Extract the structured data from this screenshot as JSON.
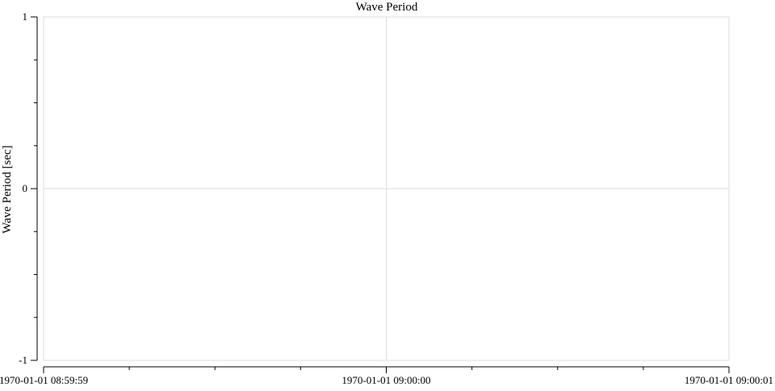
{
  "chart_data": {
    "type": "line",
    "title": "Wave Period",
    "xlabel": "",
    "ylabel": "Wave Period [sec]",
    "x_range": [
      "1970-01-01 08:59:59",
      "1970-01-01 09:00:01"
    ],
    "x_major_ticks": [
      "1970-01-01 08:59:59",
      "1970-01-01 09:00:00",
      "1970-01-01 09:00:01"
    ],
    "x_minor_ticks_per_interval": 4,
    "ylim": [
      -1,
      1
    ],
    "y_major_ticks": [
      {
        "value": 1,
        "label": "1"
      },
      {
        "value": 0,
        "label": "0"
      },
      {
        "value": -1,
        "label": "-1"
      }
    ],
    "y_minor_ticks_per_interval": 4,
    "grid": true,
    "series": [],
    "colors": {
      "grid": "#dddddd",
      "frame": "#dddddd",
      "axis": "#000000",
      "text": "#000000"
    }
  }
}
